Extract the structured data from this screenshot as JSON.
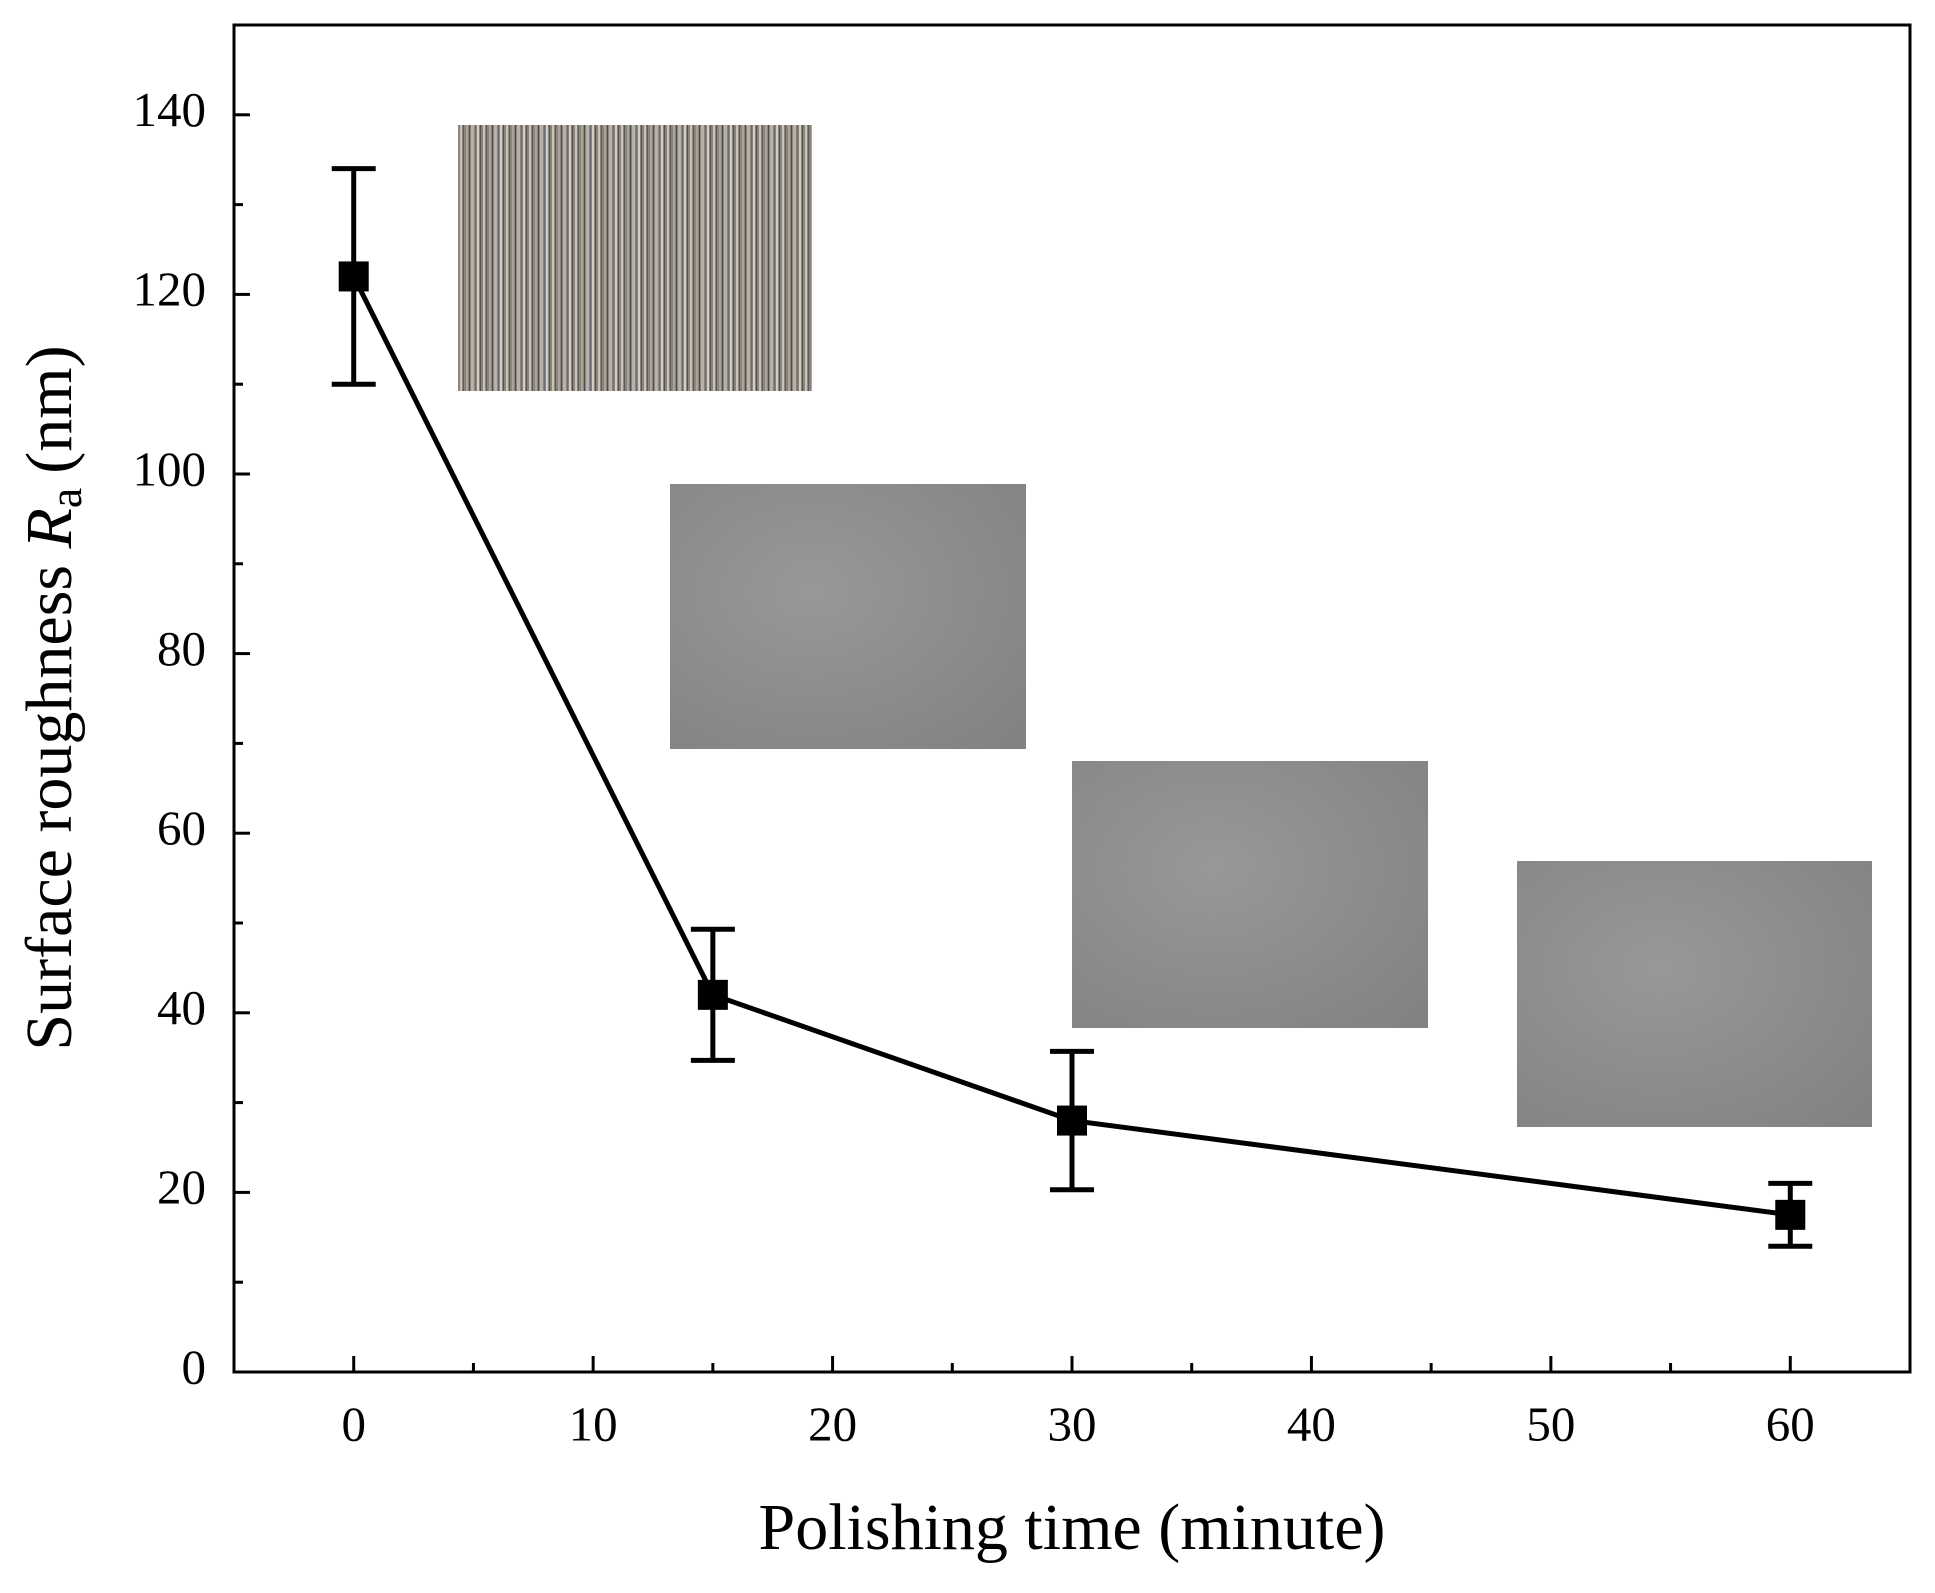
{
  "chart_data": {
    "type": "line",
    "x_label": "Polishing time (minute)",
    "y_label_prefix": "Surface roughness",
    "y_label_symbol": "R",
    "y_label_subscript": "a",
    "y_label_unit": "(nm)",
    "x": [
      0,
      15,
      30,
      60
    ],
    "values": [
      122,
      42,
      28,
      17.5
    ],
    "errors": [
      12,
      7.3,
      7.7,
      3.5
    ],
    "color": "#000000",
    "xlim": [
      -5,
      65
    ],
    "ylim": [
      0,
      150
    ],
    "xticks": [
      0,
      10,
      20,
      30,
      40,
      50,
      60
    ],
    "yticks": [
      0,
      20,
      40,
      60,
      80,
      100,
      120,
      140
    ]
  }
}
